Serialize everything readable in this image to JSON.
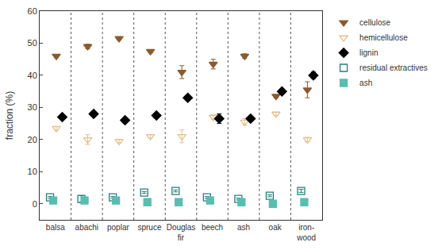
{
  "chart_data": {
    "type": "scatter",
    "y_label": "fraction (%)",
    "categories": [
      "balsa",
      "abachi",
      "poplar",
      "spruce",
      "Douglas fir",
      "beech",
      "ash",
      "oak",
      "iron-wood"
    ],
    "ylim": [
      -5,
      60
    ],
    "yticks": [
      0,
      10,
      20,
      30,
      40,
      50,
      60
    ],
    "grid": false,
    "legend": "upper right",
    "series": [
      {
        "name": "cellulose",
        "color": "#8b5a2b",
        "marker": "triangle-down",
        "values": [
          46,
          49,
          51.5,
          47.5,
          41,
          43.5,
          46,
          33.5,
          35.5
        ],
        "errors": [
          0.5,
          0.7,
          0.5,
          0.5,
          2,
          1.5,
          0.7,
          0.5,
          2.5
        ]
      },
      {
        "name": "hemicellulose",
        "color": "#e3c08f",
        "marker": "triangle-down-open",
        "values": [
          23.5,
          20,
          19.5,
          21,
          21,
          27,
          25.5,
          28,
          20
        ],
        "errors": [
          0.5,
          1.5,
          0.5,
          0.5,
          2,
          0.7,
          1,
          0.5,
          0.7
        ]
      },
      {
        "name": "lignin",
        "color": "#000000",
        "marker": "diamond",
        "values": [
          27,
          28,
          26,
          27.5,
          33,
          26.5,
          26.5,
          35,
          40
        ],
        "errors": [
          0.5,
          0.5,
          0.7,
          0.5,
          0.7,
          1.5,
          0.5,
          0.7,
          1
        ]
      },
      {
        "name": "residual extractives",
        "color": "#23807b",
        "marker": "square-open",
        "values": [
          2,
          1.5,
          2,
          3.5,
          4,
          2,
          1.5,
          2.5,
          4
        ],
        "errors": [
          0.3,
          1,
          0.3,
          0.3,
          0.3,
          0.3,
          0.3,
          0.3,
          0.5
        ]
      },
      {
        "name": "ash",
        "color": "#5bbcb0",
        "marker": "square",
        "values": [
          1,
          1,
          1,
          0.5,
          0.5,
          1,
          0.5,
          0,
          0.5
        ],
        "errors": [
          0.2,
          1,
          0.2,
          0.1,
          0.1,
          0.2,
          0.1,
          0.1,
          0.1
        ]
      }
    ]
  }
}
